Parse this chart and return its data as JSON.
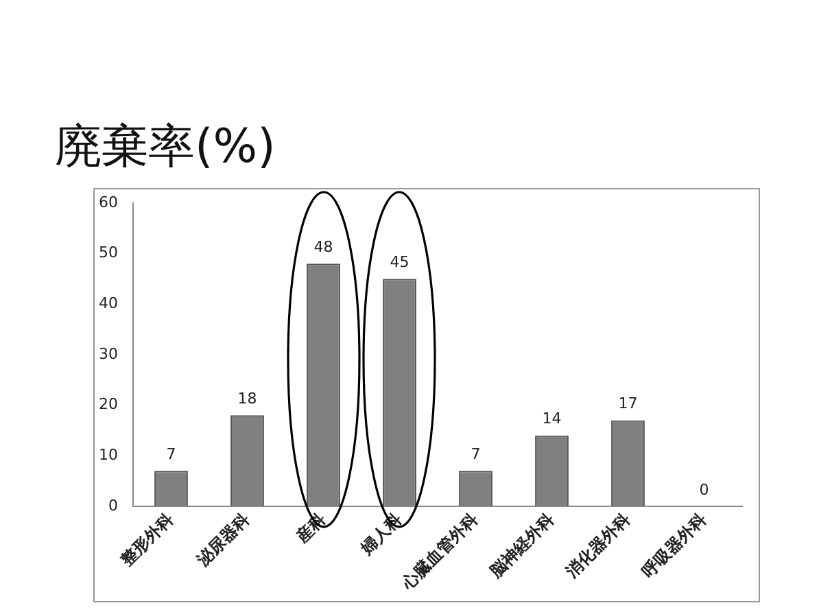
{
  "chart_data": {
    "type": "bar",
    "title": "廃棄率(%)",
    "categories": [
      "整形外科",
      "泌尿器科",
      "産科",
      "婦人科",
      "心臓血管外科",
      "脳神経外科",
      "消化器外科",
      "呼吸器外科"
    ],
    "values": [
      7,
      18,
      48,
      45,
      7,
      14,
      17,
      0
    ],
    "color": "#808080",
    "ylim": [
      0,
      60
    ],
    "yticks": [
      0,
      10,
      20,
      30,
      40,
      50,
      60
    ],
    "grid": false,
    "data_labels": true
  }
}
